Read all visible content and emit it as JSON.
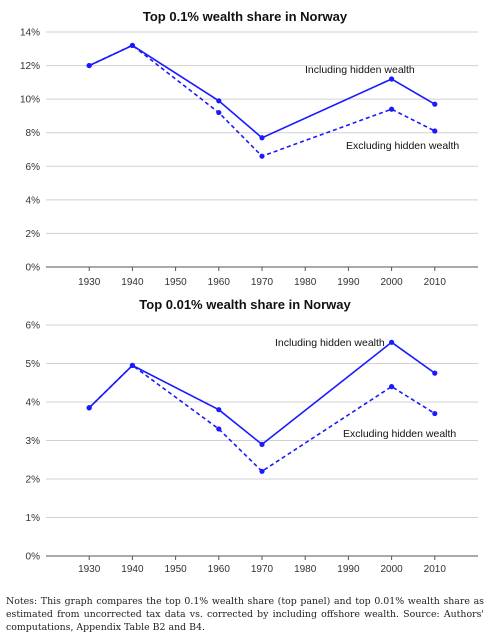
{
  "accent_color": "#1a1aff",
  "chart_data": [
    {
      "type": "line",
      "title": "Top 0.1% wealth share in Norway",
      "x": [
        1930,
        1940,
        1960,
        1970,
        2000,
        2010
      ],
      "x_ticks": [
        "1930",
        "1940",
        "1950",
        "1960",
        "1970",
        "1980",
        "1990",
        "2000",
        "2010"
      ],
      "y_ticks": [
        "0%",
        "2%",
        "4%",
        "6%",
        "8%",
        "10%",
        "12%",
        "14%"
      ],
      "ylim": [
        0,
        14
      ],
      "grid": true,
      "series": [
        {
          "name": "Including hidden wealth",
          "style": "solid",
          "values": [
            12.0,
            13.2,
            9.9,
            7.7,
            11.2,
            9.7
          ]
        },
        {
          "name": "Excluding hidden wealth",
          "style": "dashed",
          "values": [
            12.0,
            13.2,
            9.2,
            6.6,
            9.4,
            8.1
          ]
        }
      ]
    },
    {
      "type": "line",
      "title": "Top 0.01% wealth share in Norway",
      "x": [
        1930,
        1940,
        1960,
        1970,
        2000,
        2010
      ],
      "x_ticks": [
        "1930",
        "1940",
        "1950",
        "1960",
        "1970",
        "1980",
        "1990",
        "2000",
        "2010"
      ],
      "y_ticks": [
        "0%",
        "1%",
        "2%",
        "3%",
        "4%",
        "5%",
        "6%"
      ],
      "ylim": [
        0,
        6
      ],
      "grid": true,
      "series": [
        {
          "name": "Including hidden wealth",
          "style": "solid",
          "values": [
            3.85,
            4.95,
            3.8,
            2.9,
            5.55,
            4.75
          ]
        },
        {
          "name": "Excluding hidden wealth",
          "style": "dashed",
          "values": [
            3.85,
            4.95,
            3.3,
            2.2,
            4.4,
            3.7
          ]
        }
      ]
    }
  ],
  "notes": "Notes: This graph compares the top 0.1% wealth share (top panel) and top 0.01% wealth share as estimated from uncorrected tax data vs. corrected by including offshore wealth. Source: Authors' computations, Appendix Table B2 and B4."
}
